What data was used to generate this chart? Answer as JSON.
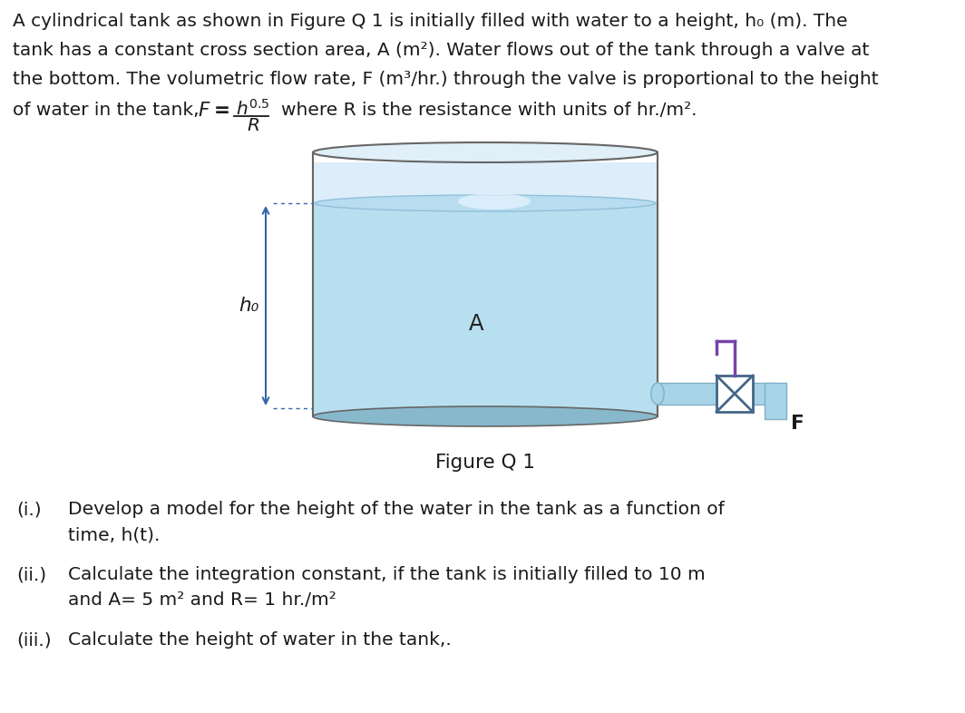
{
  "bg_color": "#ffffff",
  "text_color": "#1a1a1a",
  "paragraph_lines": [
    "A cylindrical tank as shown in Figure Q 1 is initially filled with water to a height, h₀ (m). The",
    "tank has a constant cross section area, A (m²). Water flows out of the tank through a valve at",
    "the bottom. The volumetric flow rate, F (m³/hr.) through the valve is proportional to the height"
  ],
  "formula_prefix": "of water in the tank,",
  "formula_suffix": "where R is the resistance with units of hr./m².",
  "figure_caption": "Figure Q 1",
  "tank_light_blue": "#b8dff0",
  "tank_medium_blue": "#a0cfe0",
  "tank_dark_blue": "#88b8cc",
  "tank_top_gray": "#d8eef8",
  "tank_rim_color": "#cccccc",
  "tank_outline": "#666666",
  "water_surface": "#c0e0f0",
  "pipe_color": "#a8d4e8",
  "pipe_edge": "#80b0c8",
  "valve_outline": "#446688",
  "stem_color": "#7744aa",
  "arrow_color": "#3366aa",
  "label_ho": "h₀",
  "label_A": "A",
  "label_F": "F",
  "items": [
    {
      "label": "(i.)",
      "lines": [
        "Develop a model for the height of the water in the tank as a function of",
        "time, h(t)."
      ]
    },
    {
      "label": "(ii.)",
      "lines": [
        "Calculate the integration constant, if the tank is initially filled to 10 m",
        "and A= 5 m² and R= 1 hr./m²"
      ]
    },
    {
      "label": "(iii.)",
      "lines": [
        "Calculate the height of water in the tank,."
      ]
    }
  ]
}
